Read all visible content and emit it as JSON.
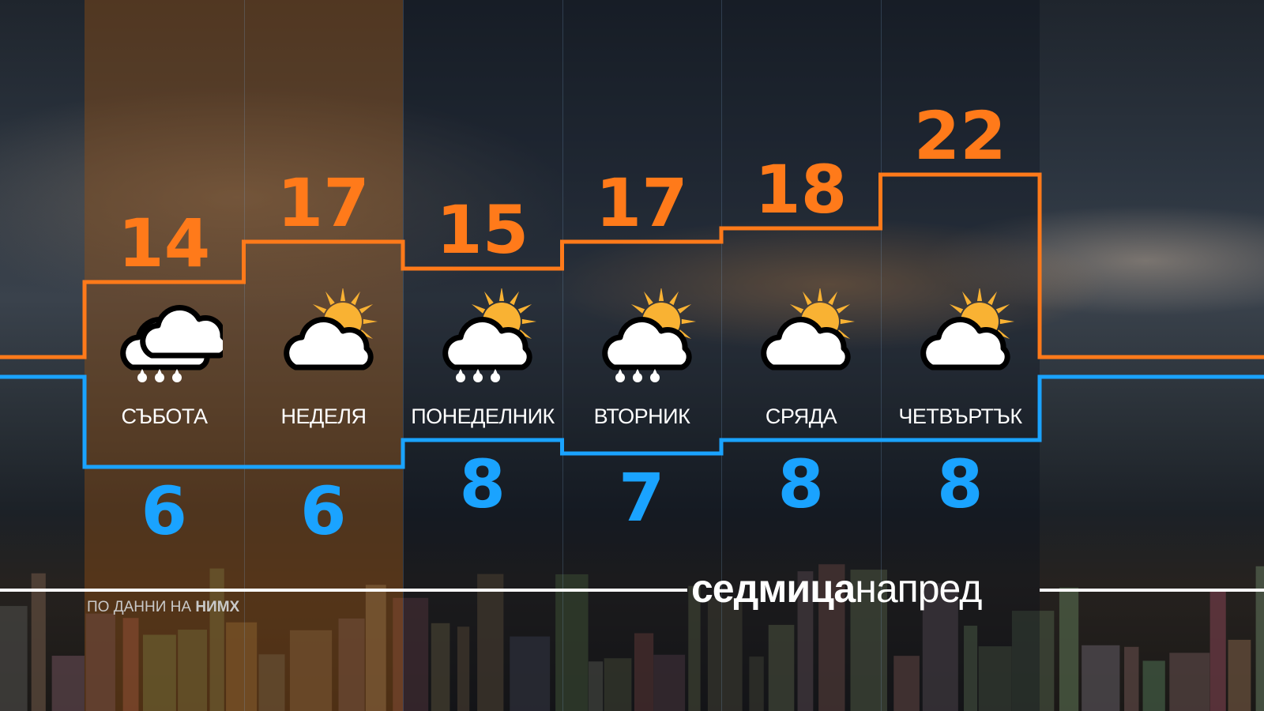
{
  "chart_data": {
    "type": "line",
    "step": true,
    "categories": [
      "СЪБОТА",
      "НЕДЕЛЯ",
      "ПОНЕДЕЛНИК",
      "ВТОРНИК",
      "СРЯДА",
      "ЧЕТВЪРТЪК"
    ],
    "series": [
      {
        "values": [
          14,
          17,
          15,
          17,
          18,
          22
        ],
        "color": "#ff7a1a"
      },
      {
        "values": [
          6,
          6,
          8,
          7,
          8,
          8
        ],
        "color": "#1aa3ff"
      }
    ],
    "icons": [
      "cloud-rain-icon",
      "sun-cloud-icon",
      "sun-cloud-rain-icon",
      "sun-cloud-rain-icon",
      "sun-cloud-icon",
      "sun-cloud-icon"
    ],
    "grid": false
  },
  "brand": {
    "bold": "седмица",
    "light": "напред"
  },
  "source": {
    "prefix": "ПО ДАННИ НА ",
    "agency": "НИМХ"
  }
}
